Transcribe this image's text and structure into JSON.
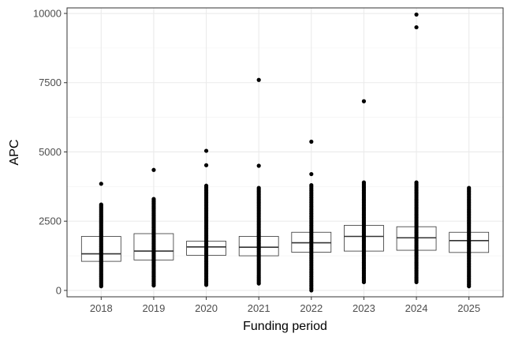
{
  "chart_data": {
    "type": "box",
    "title": "",
    "xlabel": "Funding period",
    "ylabel": "APC",
    "ylim": [
      -230,
      10200
    ],
    "yticks": [
      0,
      2500,
      5000,
      7500,
      10000
    ],
    "grid": true,
    "categories": [
      "2018",
      "2019",
      "2020",
      "2021",
      "2022",
      "2023",
      "2024",
      "2025"
    ],
    "boxes": [
      {
        "category": "2018",
        "q1": 1050,
        "median": 1320,
        "q3": 1950,
        "whisker_low": 150,
        "whisker_high": 3100
      },
      {
        "category": "2019",
        "q1": 1100,
        "median": 1420,
        "q3": 2050,
        "whisker_low": 180,
        "whisker_high": 3300
      },
      {
        "category": "2020",
        "q1": 1270,
        "median": 1570,
        "q3": 1780,
        "whisker_low": 200,
        "whisker_high": 3780
      },
      {
        "category": "2021",
        "q1": 1250,
        "median": 1560,
        "q3": 1950,
        "whisker_low": 250,
        "whisker_high": 3700
      },
      {
        "category": "2022",
        "q1": 1380,
        "median": 1720,
        "q3": 2100,
        "whisker_low": 0,
        "whisker_high": 3800
      },
      {
        "category": "2023",
        "q1": 1420,
        "median": 1950,
        "q3": 2350,
        "whisker_low": 300,
        "whisker_high": 3900
      },
      {
        "category": "2024",
        "q1": 1450,
        "median": 1900,
        "q3": 2300,
        "whisker_low": 300,
        "whisker_high": 3900
      },
      {
        "category": "2025",
        "q1": 1370,
        "median": 1800,
        "q3": 2100,
        "whisker_low": 150,
        "whisker_high": 3700
      }
    ],
    "outliers": [
      {
        "category": "2018",
        "values": [
          3850
        ]
      },
      {
        "category": "2019",
        "values": [
          4350
        ]
      },
      {
        "category": "2020",
        "values": [
          4520,
          5040
        ]
      },
      {
        "category": "2021",
        "values": [
          4500,
          7600
        ]
      },
      {
        "category": "2022",
        "values": [
          4200,
          5370
        ]
      },
      {
        "category": "2023",
        "values": [
          6830
        ]
      },
      {
        "category": "2024",
        "values": [
          9500,
          9960
        ]
      },
      {
        "category": "2025",
        "values": []
      }
    ]
  }
}
